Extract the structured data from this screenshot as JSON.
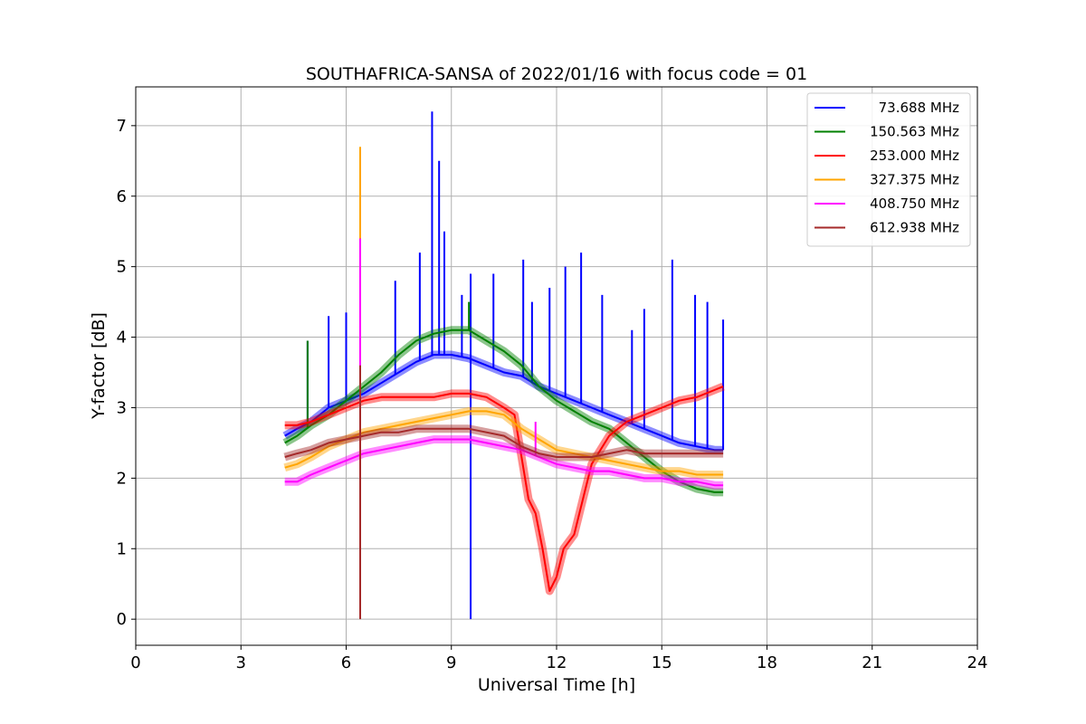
{
  "chart_data": {
    "type": "line",
    "title": "SOUTHAFRICA-SANSA of 2022/01/16 with focus code = 01",
    "xlabel": "Universal Time [h]",
    "ylabel": "Y-factor [dB]",
    "xlim": [
      0,
      24
    ],
    "ylim": [
      -0.37,
      7.55
    ],
    "xticks": [
      0,
      3,
      6,
      9,
      12,
      15,
      18,
      21,
      24
    ],
    "yticks": [
      0,
      1,
      2,
      3,
      4,
      5,
      6,
      7
    ],
    "grid": true,
    "legend_position": "top-right",
    "series": [
      {
        "name": "73.688 MHz",
        "color": "#0000ff",
        "x": [
          4.25,
          4.6,
          5.0,
          5.5,
          6.0,
          6.5,
          7.0,
          7.5,
          8.0,
          8.5,
          9.0,
          9.5,
          10.0,
          10.5,
          11.0,
          11.5,
          12.0,
          12.5,
          13.0,
          13.5,
          14.0,
          14.5,
          15.0,
          15.5,
          16.0,
          16.5,
          16.75
        ],
        "values": [
          2.6,
          2.7,
          2.8,
          3.0,
          3.1,
          3.2,
          3.35,
          3.5,
          3.65,
          3.75,
          3.75,
          3.7,
          3.6,
          3.5,
          3.45,
          3.3,
          3.2,
          3.1,
          3.0,
          2.9,
          2.8,
          2.7,
          2.6,
          2.5,
          2.45,
          2.4,
          2.4
        ],
        "spikes": [
          [
            4.9,
            3.95
          ],
          [
            5.5,
            4.3
          ],
          [
            6.0,
            4.35
          ],
          [
            6.4,
            4.6
          ],
          [
            7.4,
            4.8
          ],
          [
            8.1,
            5.2
          ],
          [
            8.45,
            7.2
          ],
          [
            8.65,
            6.5
          ],
          [
            8.8,
            5.5
          ],
          [
            9.3,
            4.6
          ],
          [
            9.55,
            0.0
          ],
          [
            9.55,
            4.9
          ],
          [
            10.2,
            4.9
          ],
          [
            11.05,
            5.1
          ],
          [
            11.3,
            4.5
          ],
          [
            11.8,
            4.7
          ],
          [
            12.25,
            5.0
          ],
          [
            12.7,
            5.2
          ],
          [
            13.3,
            4.6
          ],
          [
            14.15,
            4.1
          ],
          [
            14.5,
            4.4
          ],
          [
            15.3,
            5.1
          ],
          [
            15.95,
            4.6
          ],
          [
            16.3,
            4.5
          ],
          [
            16.75,
            4.25
          ]
        ]
      },
      {
        "name": "150.563 MHz",
        "color": "#008000",
        "x": [
          4.25,
          4.6,
          5.0,
          5.5,
          6.0,
          6.5,
          7.0,
          7.5,
          8.0,
          8.5,
          9.0,
          9.5,
          10.0,
          10.5,
          11.0,
          11.5,
          12.0,
          12.5,
          13.0,
          13.5,
          14.0,
          14.5,
          15.0,
          15.5,
          16.0,
          16.5,
          16.75
        ],
        "values": [
          2.5,
          2.6,
          2.75,
          2.9,
          3.1,
          3.3,
          3.5,
          3.75,
          3.95,
          4.05,
          4.1,
          4.1,
          3.95,
          3.8,
          3.6,
          3.3,
          3.1,
          2.95,
          2.8,
          2.7,
          2.5,
          2.3,
          2.1,
          1.95,
          1.85,
          1.8,
          1.8
        ],
        "spikes": [
          [
            4.9,
            3.95
          ],
          [
            9.5,
            4.5
          ]
        ]
      },
      {
        "name": "253.000 MHz",
        "color": "#ff0000",
        "x": [
          4.25,
          4.6,
          5.0,
          5.5,
          6.0,
          6.5,
          7.0,
          7.5,
          8.0,
          8.5,
          9.0,
          9.5,
          10.0,
          10.5,
          10.8,
          11.0,
          11.2,
          11.4,
          11.6,
          11.8,
          12.0,
          12.2,
          12.5,
          12.8,
          13.0,
          13.5,
          14.0,
          14.5,
          15.0,
          15.5,
          16.0,
          16.5,
          16.75
        ],
        "values": [
          2.75,
          2.75,
          2.8,
          2.9,
          3.0,
          3.1,
          3.15,
          3.15,
          3.15,
          3.15,
          3.2,
          3.2,
          3.15,
          3.0,
          2.9,
          2.3,
          1.7,
          1.5,
          1.0,
          0.4,
          0.6,
          1.0,
          1.2,
          1.8,
          2.2,
          2.6,
          2.8,
          2.9,
          3.0,
          3.1,
          3.15,
          3.25,
          3.3
        ],
        "spikes": []
      },
      {
        "name": "327.375 MHz",
        "color": "#ffa500",
        "x": [
          4.25,
          4.6,
          5.0,
          5.5,
          6.0,
          6.5,
          7.0,
          7.5,
          8.0,
          8.5,
          9.0,
          9.5,
          10.0,
          10.5,
          11.0,
          11.5,
          12.0,
          12.5,
          13.0,
          13.5,
          14.0,
          14.5,
          15.0,
          15.5,
          16.0,
          16.5,
          16.75
        ],
        "values": [
          2.15,
          2.2,
          2.3,
          2.45,
          2.55,
          2.65,
          2.7,
          2.75,
          2.8,
          2.85,
          2.9,
          2.95,
          2.95,
          2.9,
          2.7,
          2.55,
          2.4,
          2.35,
          2.3,
          2.25,
          2.2,
          2.15,
          2.1,
          2.1,
          2.05,
          2.05,
          2.05
        ],
        "spikes": [
          [
            6.4,
            6.7
          ]
        ]
      },
      {
        "name": "408.750 MHz",
        "color": "#ff00ff",
        "x": [
          4.25,
          4.6,
          5.0,
          5.5,
          6.0,
          6.5,
          7.0,
          7.5,
          8.0,
          8.5,
          9.0,
          9.5,
          10.0,
          10.5,
          11.0,
          11.5,
          12.0,
          12.5,
          13.0,
          13.5,
          14.0,
          14.5,
          15.0,
          15.5,
          16.0,
          16.5,
          16.75
        ],
        "values": [
          1.95,
          1.95,
          2.05,
          2.15,
          2.25,
          2.35,
          2.4,
          2.45,
          2.5,
          2.55,
          2.55,
          2.55,
          2.5,
          2.45,
          2.4,
          2.3,
          2.2,
          2.15,
          2.1,
          2.1,
          2.05,
          2.0,
          2.0,
          1.95,
          1.95,
          1.9,
          1.9
        ],
        "spikes": [
          [
            6.4,
            5.4
          ],
          [
            11.4,
            2.8
          ]
        ]
      },
      {
        "name": "612.938 MHz",
        "color": "#a52a2a",
        "x": [
          4.25,
          4.6,
          5.0,
          5.5,
          6.0,
          6.5,
          7.0,
          7.5,
          8.0,
          8.5,
          9.0,
          9.5,
          10.0,
          10.5,
          11.0,
          11.5,
          12.0,
          12.5,
          13.0,
          13.5,
          14.0,
          14.5,
          15.0,
          15.5,
          16.0,
          16.5,
          16.75
        ],
        "values": [
          2.3,
          2.35,
          2.4,
          2.5,
          2.55,
          2.6,
          2.65,
          2.65,
          2.7,
          2.7,
          2.7,
          2.7,
          2.65,
          2.6,
          2.45,
          2.35,
          2.3,
          2.3,
          2.3,
          2.35,
          2.4,
          2.35,
          2.35,
          2.35,
          2.35,
          2.35,
          2.35
        ],
        "spikes": [
          [
            6.4,
            0.0
          ],
          [
            6.4,
            3.6
          ]
        ]
      }
    ]
  }
}
